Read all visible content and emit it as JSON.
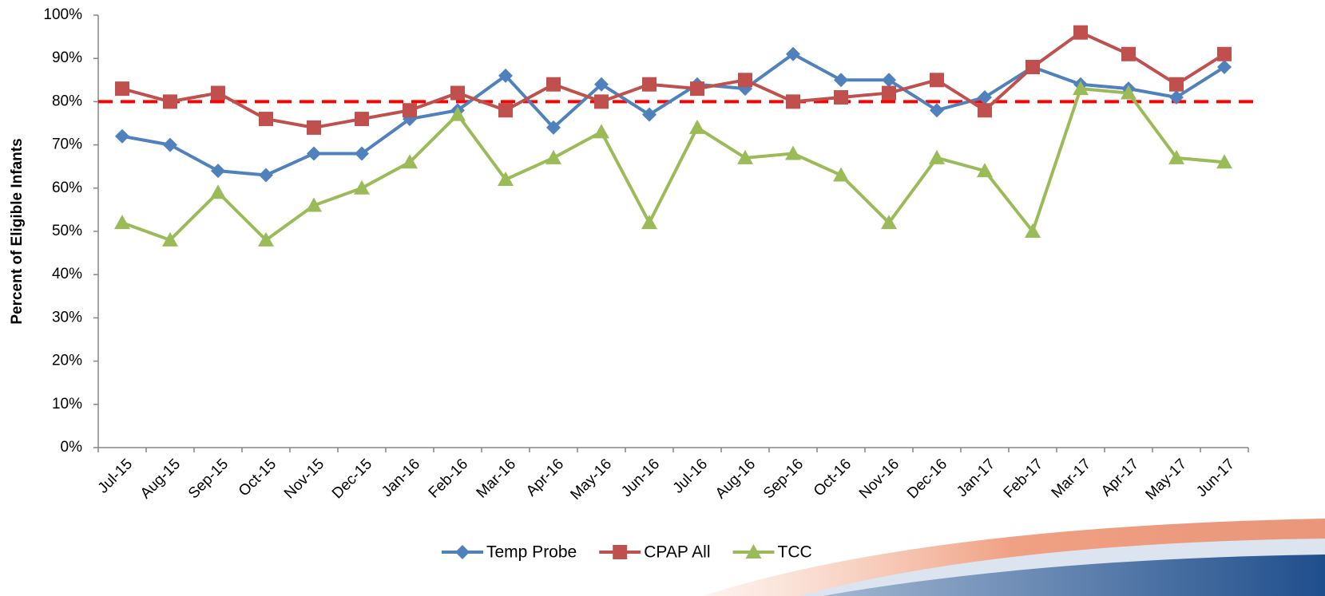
{
  "chart_data": {
    "type": "line",
    "y_label": "Percent of Eligible Infants",
    "categories": [
      "Jul-15",
      "Aug-15",
      "Sep-15",
      "Oct-15",
      "Nov-15",
      "Dec-15",
      "Jan-16",
      "Feb-16",
      "Mar-16",
      "Apr-16",
      "May-16",
      "Jun-16",
      "Jul-16",
      "Aug-16",
      "Sep-16",
      "Oct-16",
      "Nov-16",
      "Dec-16",
      "Jan-17",
      "Feb-17",
      "Mar-17",
      "Apr-17",
      "May-17",
      "Jun-17"
    ],
    "series": [
      {
        "name": "Temp Probe",
        "color": "#4f81bd",
        "marker": "diamond",
        "values": [
          72,
          70,
          64,
          63,
          68,
          68,
          76,
          78,
          86,
          74,
          84,
          77,
          84,
          83,
          91,
          85,
          85,
          78,
          81,
          88,
          84,
          83,
          81,
          88
        ]
      },
      {
        "name": "CPAP All",
        "color": "#c0504d",
        "marker": "square",
        "values": [
          83,
          80,
          82,
          76,
          74,
          76,
          78,
          82,
          78,
          84,
          80,
          84,
          83,
          85,
          80,
          81,
          82,
          85,
          78,
          88,
          96,
          91,
          84,
          91
        ]
      },
      {
        "name": "TCC",
        "color": "#9bbb59",
        "marker": "triangle",
        "values": [
          52,
          48,
          59,
          48,
          56,
          60,
          66,
          77,
          62,
          67,
          73,
          52,
          74,
          67,
          68,
          63,
          52,
          67,
          64,
          50,
          83,
          82,
          67,
          66
        ]
      }
    ],
    "target_line": {
      "value": 80,
      "color": "#ff0000"
    },
    "ylim": [
      0,
      100
    ],
    "yticks": [
      {
        "value": 0,
        "label": "0%"
      },
      {
        "value": 10,
        "label": "10%"
      },
      {
        "value": 20,
        "label": "20%"
      },
      {
        "value": 30,
        "label": "30%"
      },
      {
        "value": 40,
        "label": "40%"
      },
      {
        "value": 50,
        "label": "50%"
      },
      {
        "value": 60,
        "label": "60%"
      },
      {
        "value": 70,
        "label": "70%"
      },
      {
        "value": 80,
        "label": "80%"
      },
      {
        "value": 90,
        "label": "90%"
      },
      {
        "value": 100,
        "label": "100%"
      }
    ],
    "legend": "bottom"
  }
}
